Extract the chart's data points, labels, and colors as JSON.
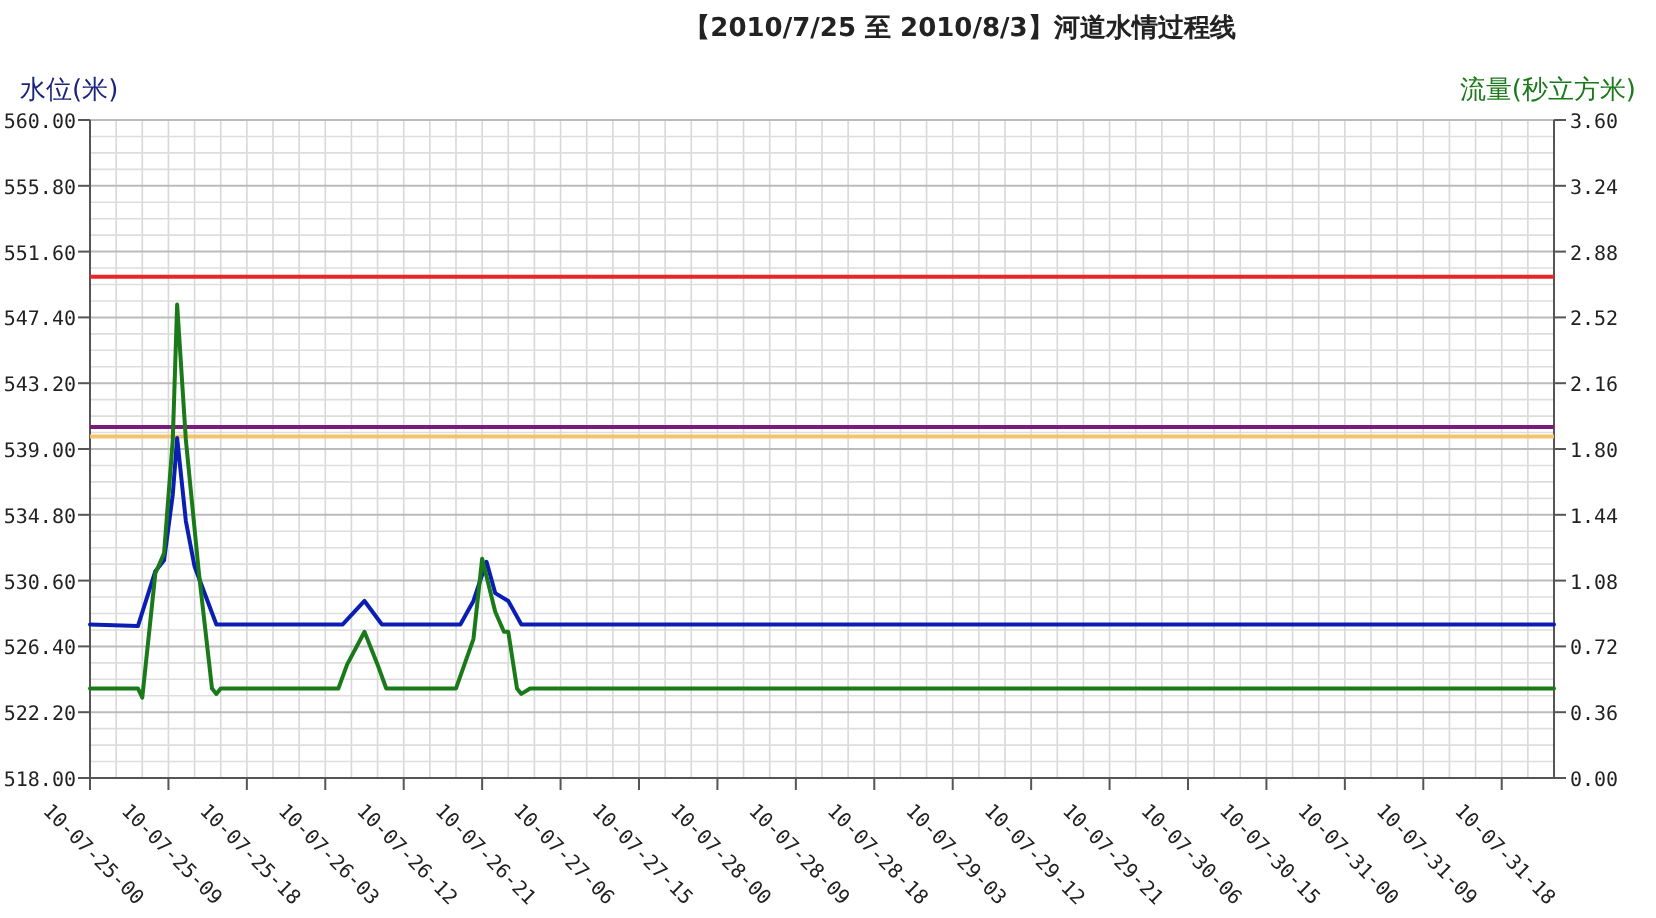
{
  "chart_data": {
    "type": "line",
    "title": "【2010/7/25 至 2010/8/3】河道水情过程线",
    "ylabel": "水位(米)",
    "y2label": "流量(秒立方米)",
    "xlim": [
      "2010-07-25T00:00",
      "2010-08-01T00:00"
    ],
    "xticks": [
      {
        "value": "2010-07-25T00:00",
        "label": "10-07-25-00"
      },
      {
        "value": "2010-07-25T09:00",
        "label": "10-07-25-09"
      },
      {
        "value": "2010-07-25T18:00",
        "label": "10-07-25-18"
      },
      {
        "value": "2010-07-26T03:00",
        "label": "10-07-26-03"
      },
      {
        "value": "2010-07-26T12:00",
        "label": "10-07-26-12"
      },
      {
        "value": "2010-07-26T21:00",
        "label": "10-07-26-21"
      },
      {
        "value": "2010-07-27T06:00",
        "label": "10-07-27-06"
      },
      {
        "value": "2010-07-27T15:00",
        "label": "10-07-27-15"
      },
      {
        "value": "2010-07-28T00:00",
        "label": "10-07-28-00"
      },
      {
        "value": "2010-07-28T09:00",
        "label": "10-07-28-09"
      },
      {
        "value": "2010-07-28T18:00",
        "label": "10-07-28-18"
      },
      {
        "value": "2010-07-29T03:00",
        "label": "10-07-29-03"
      },
      {
        "value": "2010-07-29T12:00",
        "label": "10-07-29-12"
      },
      {
        "value": "2010-07-29T21:00",
        "label": "10-07-29-21"
      },
      {
        "value": "2010-07-30T06:00",
        "label": "10-07-30-06"
      },
      {
        "value": "2010-07-30T15:00",
        "label": "10-07-30-15"
      },
      {
        "value": "2010-07-31T00:00",
        "label": "10-07-31-00"
      },
      {
        "value": "2010-07-31T09:00",
        "label": "10-07-31-09"
      },
      {
        "value": "2010-07-31T18:00",
        "label": "10-07-31-18"
      }
    ],
    "ylim": [
      518,
      560
    ],
    "yticks": [
      {
        "value": 560,
        "label": "560.00"
      },
      {
        "value": 555.8,
        "label": "555.80"
      },
      {
        "value": 551.6,
        "label": "551.60"
      },
      {
        "value": 547.4,
        "label": "547.40"
      },
      {
        "value": 543.2,
        "label": "543.20"
      },
      {
        "value": 539,
        "label": "539.00"
      },
      {
        "value": 534.8,
        "label": "534.80"
      },
      {
        "value": 530.6,
        "label": "530.60"
      },
      {
        "value": 526.4,
        "label": "526.40"
      },
      {
        "value": 522.2,
        "label": "522.20"
      },
      {
        "value": 518,
        "label": "518.00"
      }
    ],
    "y2lim": [
      0,
      3.6
    ],
    "y2ticks": [
      {
        "value": 3.6,
        "label": "3.60"
      },
      {
        "value": 3.24,
        "label": "3.24"
      },
      {
        "value": 2.88,
        "label": "2.88"
      },
      {
        "value": 2.52,
        "label": "2.52"
      },
      {
        "value": 2.16,
        "label": "2.16"
      },
      {
        "value": 1.8,
        "label": "1.80"
      },
      {
        "value": 1.44,
        "label": "1.44"
      },
      {
        "value": 1.08,
        "label": "1.08"
      },
      {
        "value": 0.72,
        "label": "0.72"
      },
      {
        "value": 0.36,
        "label": "0.36"
      },
      {
        "value": 0,
        "label": "0.00"
      }
    ],
    "grid": true,
    "line_style": "solid",
    "ref_lines": [
      {
        "axis": "y",
        "value": 550,
        "color": "#e8262a"
      },
      {
        "axis": "y",
        "value": 540.4,
        "color": "#7a1a7a"
      },
      {
        "axis": "y",
        "value": 539.8,
        "color": "#f5c36e"
      }
    ],
    "series": [
      {
        "color": "#0a1eb4",
        "axis": "y",
        "x": [
          "2010-07-25T00:00",
          "2010-07-25T05:30",
          "2010-07-25T07:30",
          "2010-07-25T08:30",
          "2010-07-25T09:30",
          "2010-07-25T10:00",
          "2010-07-25T11:00",
          "2010-07-25T12:00",
          "2010-07-25T14:30",
          "2010-07-26T05:00",
          "2010-07-26T07:30",
          "2010-07-26T09:30",
          "2010-07-26T18:30",
          "2010-07-26T20:00",
          "2010-07-26T21:30",
          "2010-07-26T22:30",
          "2010-07-27T00:00",
          "2010-07-27T01:30",
          "2010-08-01T00:00"
        ],
        "values": [
          527.8,
          527.7,
          531.2,
          531.9,
          536.1,
          539.7,
          534.4,
          531.5,
          527.8,
          527.8,
          529.3,
          527.8,
          527.8,
          529.3,
          531.8,
          529.8,
          529.3,
          527.8,
          527.8
        ]
      },
      {
        "color": "#1a7a1a",
        "axis": "y2",
        "x": [
          "2010-07-25T00:00",
          "2010-07-25T05:30",
          "2010-07-25T06:00",
          "2010-07-25T07:30",
          "2010-07-25T08:30",
          "2010-07-25T09:30",
          "2010-07-25T10:00",
          "2010-07-25T11:00",
          "2010-07-25T12:30",
          "2010-07-25T14:00",
          "2010-07-25T14:30",
          "2010-07-25T15:00",
          "2010-07-26T04:30",
          "2010-07-26T05:30",
          "2010-07-26T07:30",
          "2010-07-26T09:00",
          "2010-07-26T10:00",
          "2010-07-26T18:00",
          "2010-07-26T20:00",
          "2010-07-26T21:00",
          "2010-07-26T22:30",
          "2010-07-26T23:30",
          "2010-07-27T00:00",
          "2010-07-27T01:00",
          "2010-07-27T01:30",
          "2010-07-27T02:30",
          "2010-08-01T00:00"
        ],
        "values": [
          0.49,
          0.49,
          0.44,
          1.12,
          1.23,
          1.85,
          2.59,
          1.85,
          1.12,
          0.49,
          0.46,
          0.49,
          0.49,
          0.62,
          0.8,
          0.62,
          0.49,
          0.49,
          0.76,
          1.2,
          0.91,
          0.8,
          0.8,
          0.49,
          0.46,
          0.49,
          0.49
        ]
      }
    ]
  }
}
